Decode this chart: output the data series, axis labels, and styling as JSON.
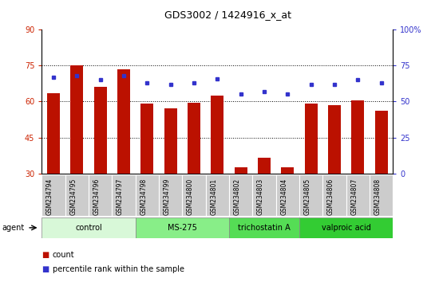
{
  "title": "GDS3002 / 1424916_x_at",
  "samples": [
    "GSM234794",
    "GSM234795",
    "GSM234796",
    "GSM234797",
    "GSM234798",
    "GSM234799",
    "GSM234800",
    "GSM234801",
    "GSM234802",
    "GSM234803",
    "GSM234804",
    "GSM234805",
    "GSM234806",
    "GSM234807",
    "GSM234808"
  ],
  "bar_values": [
    63.5,
    75.2,
    66.0,
    73.5,
    59.0,
    57.0,
    59.5,
    62.5,
    32.5,
    36.5,
    32.5,
    59.0,
    58.5,
    60.5,
    56.0
  ],
  "dot_values": [
    67,
    68,
    65,
    68,
    63,
    62,
    63,
    66,
    55,
    57,
    55,
    62,
    62,
    65,
    63
  ],
  "bar_color": "#bb1100",
  "dot_color": "#3333cc",
  "ylim_left": [
    30,
    90
  ],
  "ylim_right": [
    0,
    100
  ],
  "yticks_left": [
    30,
    45,
    60,
    75,
    90
  ],
  "yticks_right": [
    0,
    25,
    50,
    75,
    100
  ],
  "ytick_labels_right": [
    "0",
    "25",
    "50",
    "75",
    "100%"
  ],
  "gridlines": [
    45,
    60,
    75
  ],
  "groups": [
    {
      "label": "control",
      "start": 0,
      "end": 3,
      "color": "#d8f8d8"
    },
    {
      "label": "MS-275",
      "start": 4,
      "end": 7,
      "color": "#88ee88"
    },
    {
      "label": "trichostatin A",
      "start": 8,
      "end": 10,
      "color": "#55dd55"
    },
    {
      "label": "valproic acid",
      "start": 11,
      "end": 14,
      "color": "#33cc33"
    }
  ],
  "agent_label": "agent",
  "legend_count_label": "count",
  "legend_pct_label": "percentile rank within the sample",
  "left_tick_color": "#cc2200",
  "right_tick_color": "#3333cc",
  "sample_box_color": "#cccccc",
  "title_fontsize": 9,
  "tick_fontsize": 7,
  "label_fontsize": 7,
  "group_fontsize": 7
}
